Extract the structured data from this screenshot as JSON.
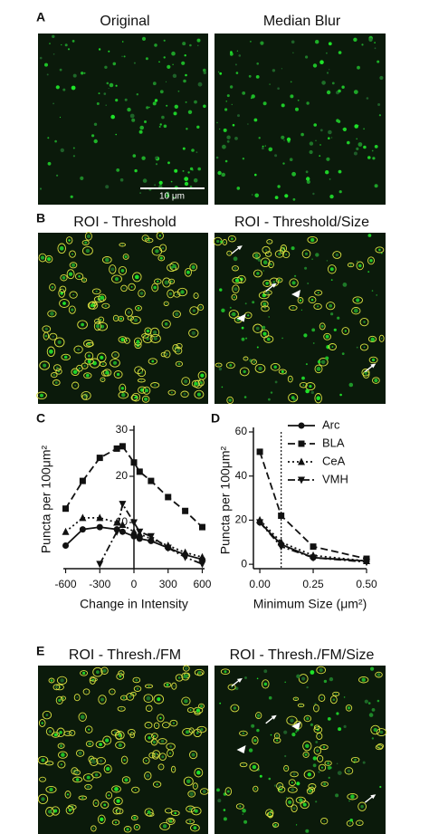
{
  "panels": [
    {
      "label": "A",
      "images": [
        {
          "title": "Original"
        },
        {
          "title": "Median Blur"
        }
      ],
      "scale_bar": "10 μm"
    },
    {
      "label": "B",
      "images": [
        {
          "title": "ROI - Threshold"
        },
        {
          "title": "ROI - Threshold/Size"
        }
      ]
    },
    {
      "label": "E",
      "images": [
        {
          "title": "ROI - Thresh./FM"
        },
        {
          "title": "ROI - Thresh./FM/Size"
        }
      ]
    }
  ],
  "chart_data": [
    {
      "type": "line",
      "panel": "C",
      "x_label": "Change in Intensity",
      "y_label": "Puncta per 100μm²",
      "x": [
        -600,
        -450,
        -300,
        -150,
        -100,
        0,
        50,
        150,
        300,
        450,
        600
      ],
      "xlim": [
        -620,
        620
      ],
      "xticks": [
        -600,
        -300,
        0,
        300,
        600
      ],
      "ylim": [
        0,
        30
      ],
      "yticks": [
        10,
        20,
        30
      ],
      "y_axis_at_zero": true,
      "series": [
        {
          "color": "#111111",
          "dash": "solid",
          "marker": "circle",
          "values": [
            5,
            8.5,
            9,
            8.5,
            8,
            7,
            6.5,
            6,
            4.5,
            3,
            2
          ]
        },
        {
          "color": "#111111",
          "dash": "dashed",
          "marker": "square",
          "values": [
            13,
            19,
            24,
            26,
            26.5,
            23,
            21,
            19,
            15.5,
            12.5,
            9
          ]
        },
        {
          "color": "#111111",
          "dash": "dotted",
          "marker": "triangle-up",
          "values": [
            8,
            11,
            11,
            10,
            9.5,
            8,
            7.5,
            6.5,
            5,
            3.5,
            2.5
          ]
        },
        {
          "color": "#111111",
          "dash": "dashdot",
          "marker": "triangle-down",
          "values": [
            null,
            null,
            1,
            8,
            14,
            10,
            8,
            7,
            4.5,
            2.5,
            1
          ]
        }
      ]
    },
    {
      "type": "line",
      "panel": "D",
      "x_label": "Minimum Size (μm²)",
      "y_label": "Puncta per 100μm²",
      "x": [
        0,
        0.1,
        0.25,
        0.5
      ],
      "xlim": [
        -0.03,
        0.5
      ],
      "xticks": [
        {
          "value": 0,
          "label": "0.00"
        },
        {
          "value": 0.25,
          "label": "0.25"
        },
        {
          "value": 0.5,
          "label": "0.50"
        }
      ],
      "ylim": [
        -2,
        60
      ],
      "yticks": [
        0,
        20,
        40,
        60
      ],
      "vline": 0.1,
      "legend": "upper right",
      "series": [
        {
          "name": "Arc",
          "color": "#111111",
          "dash": "solid",
          "marker": "circle",
          "values": [
            19,
            9,
            3,
            1.5
          ]
        },
        {
          "name": "BLA",
          "color": "#111111",
          "dash": "dashed",
          "marker": "square",
          "values": [
            51,
            22,
            8,
            2.5
          ]
        },
        {
          "name": "CeA",
          "color": "#111111",
          "dash": "dotted",
          "marker": "triangle-up",
          "values": [
            20,
            10,
            4,
            1.5
          ]
        },
        {
          "name": "VMH",
          "color": "#111111",
          "dash": "dashdot",
          "marker": "triangle-down",
          "values": [
            19,
            8,
            3,
            1
          ]
        }
      ]
    }
  ]
}
